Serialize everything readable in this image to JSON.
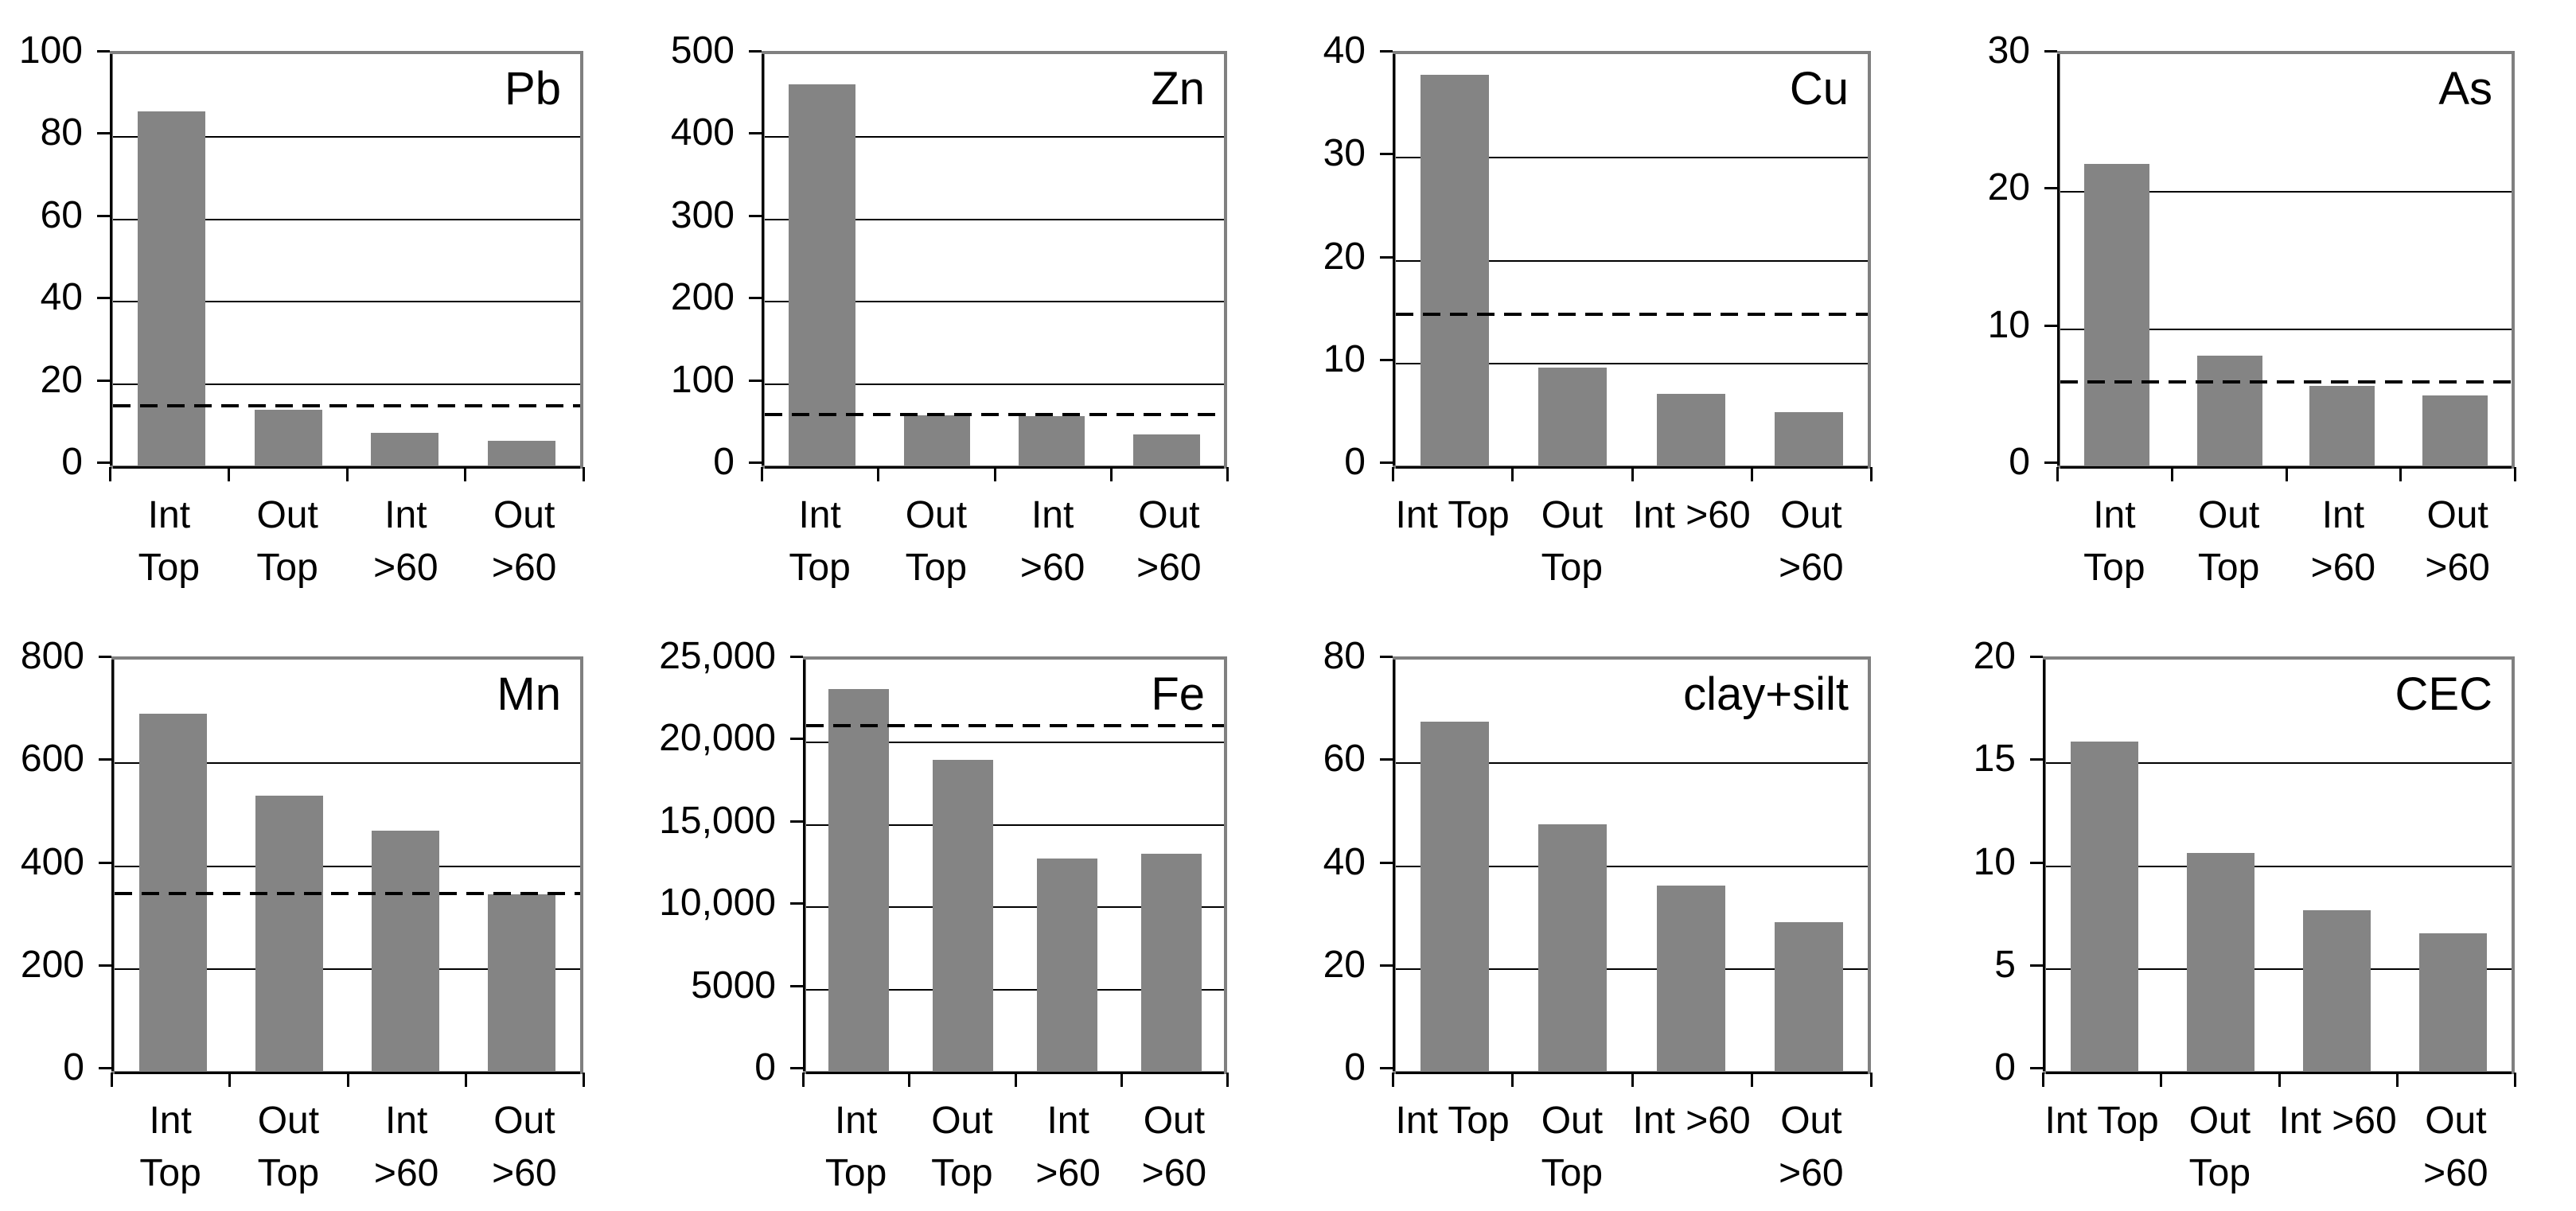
{
  "figure": {
    "description": "Eight gray bar charts in a 2x4 grid comparing four sample groups",
    "background": "#ffffff"
  },
  "colors": {
    "bar": "#848484",
    "plot_border": "#808080",
    "axis": "#000000",
    "gridline": "#000000",
    "dashed_line": "#000000"
  },
  "chart_data": [
    {
      "type": "bar",
      "title": "Pb",
      "categories": [
        "Int\nTop",
        "Out\nTop",
        "Int\n>60",
        "Out\n>60"
      ],
      "values": [
        86,
        13.5,
        8,
        6
      ],
      "ylim": [
        0,
        100
      ],
      "yticks": [
        0,
        20,
        40,
        60,
        80,
        100
      ],
      "ytick_labels": [
        "0",
        "20",
        "40",
        "60",
        "80",
        "100"
      ],
      "dashed_line": 14.5,
      "grid": true,
      "legend": "none"
    },
    {
      "type": "bar",
      "title": "Zn",
      "categories": [
        "Int\nTop",
        "Out\nTop",
        "Int\n>60",
        "Out\n>60"
      ],
      "values": [
        463,
        61,
        60,
        38
      ],
      "ylim": [
        0,
        500
      ],
      "yticks": [
        0,
        100,
        200,
        300,
        400,
        500
      ],
      "ytick_labels": [
        "0",
        "100",
        "200",
        "300",
        "400",
        "500"
      ],
      "dashed_line": 62,
      "grid": true,
      "legend": "none"
    },
    {
      "type": "bar",
      "title": "Cu",
      "categories": [
        "Int Top",
        "Out\nTop",
        "Int >60",
        "Out\n>60"
      ],
      "values": [
        38,
        9.5,
        7,
        5.2
      ],
      "ylim": [
        0,
        40
      ],
      "yticks": [
        0,
        10,
        20,
        30,
        40
      ],
      "ytick_labels": [
        "0",
        "10",
        "20",
        "30",
        "40"
      ],
      "dashed_line": 14.7,
      "grid": true,
      "legend": "none"
    },
    {
      "type": "bar",
      "title": "As",
      "categories": [
        "Int\nTop",
        "Out\nTop",
        "Int\n>60",
        "Out\n>60"
      ],
      "values": [
        22,
        8,
        5.8,
        5.1
      ],
      "ylim": [
        0,
        30
      ],
      "yticks": [
        0,
        10,
        20,
        30
      ],
      "ytick_labels": [
        "0",
        "10",
        "20",
        "30"
      ],
      "dashed_line": 6.1,
      "grid": true,
      "legend": "none"
    },
    {
      "type": "bar",
      "title": "Mn",
      "categories": [
        "Int\nTop",
        "Out\nTop",
        "Int\n>60",
        "Out\n>60"
      ],
      "values": [
        695,
        535,
        467,
        344
      ],
      "ylim": [
        0,
        800
      ],
      "yticks": [
        0,
        200,
        400,
        600,
        800
      ],
      "ytick_labels": [
        "0",
        "200",
        "400",
        "600",
        "800"
      ],
      "dashed_line": 345,
      "grid": true,
      "legend": "none"
    },
    {
      "type": "bar",
      "title": "Fe",
      "categories": [
        "Int\nTop",
        "Out\nTop",
        "Int\n>60",
        "Out\n>60"
      ],
      "values": [
        23200,
        18900,
        12900,
        13200
      ],
      "ylim": [
        0,
        25000
      ],
      "yticks": [
        0,
        5000,
        10000,
        15000,
        20000,
        25000
      ],
      "ytick_labels": [
        "0",
        "5000",
        "10,000",
        "15,000",
        "20,000",
        "25,000"
      ],
      "dashed_line": 21000,
      "grid": true,
      "legend": "none"
    },
    {
      "type": "bar",
      "title": "clay+silt",
      "categories": [
        "Int Top",
        "Out\nTop",
        "Int >60",
        "Out\n>60"
      ],
      "values": [
        68,
        48,
        36,
        29
      ],
      "ylim": [
        0,
        80
      ],
      "yticks": [
        0,
        20,
        40,
        60,
        80
      ],
      "ytick_labels": [
        "0",
        "20",
        "40",
        "60",
        "80"
      ],
      "dashed_line": null,
      "grid": true,
      "legend": "none"
    },
    {
      "type": "bar",
      "title": "CEC",
      "categories": [
        "Int Top",
        "Out\nTop",
        "Int >60",
        "Out\n>60"
      ],
      "values": [
        16,
        10.6,
        7.8,
        6.7
      ],
      "ylim": [
        0,
        20
      ],
      "yticks": [
        0,
        5,
        10,
        15,
        20
      ],
      "ytick_labels": [
        "0",
        "5",
        "10",
        "15",
        "20"
      ],
      "dashed_line": null,
      "grid": true,
      "legend": "none"
    }
  ]
}
